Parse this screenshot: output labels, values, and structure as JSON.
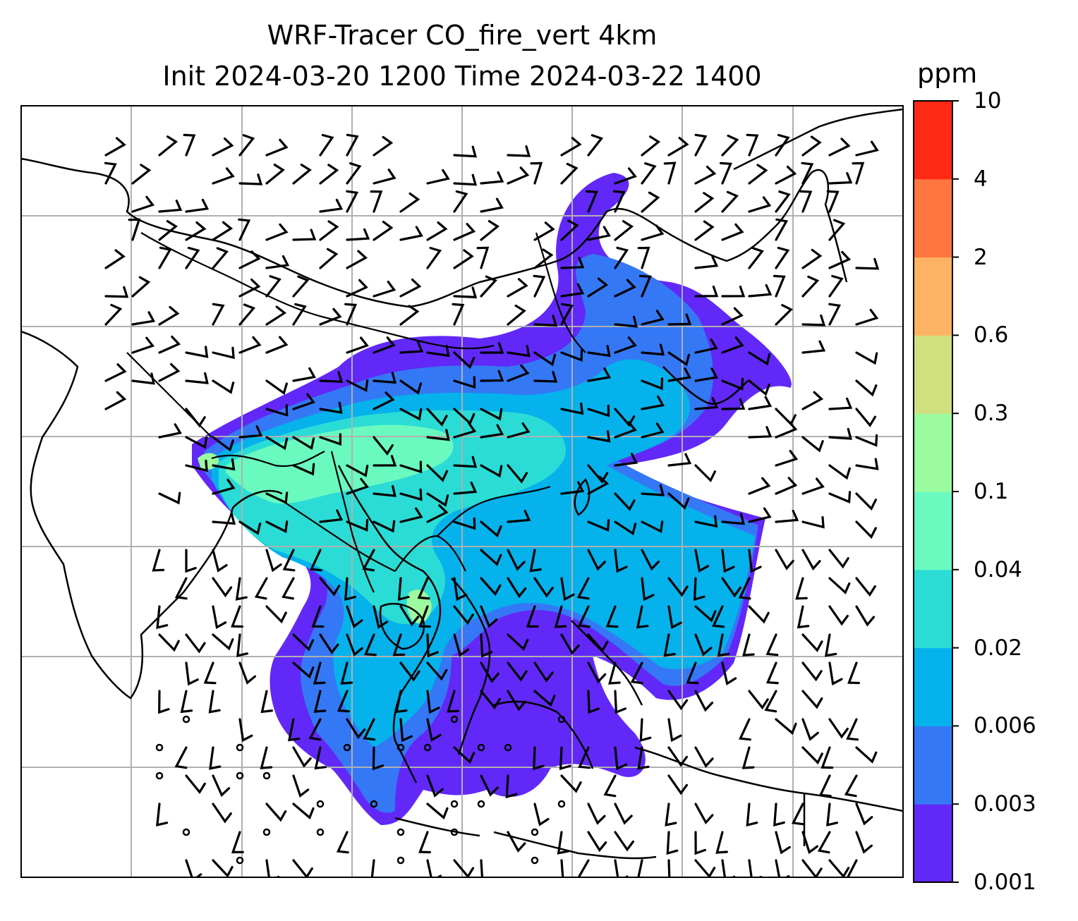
{
  "title_line1": "WRF-Tracer CO_fire_vert 4km",
  "title_line2": "Init 2024-03-20 1200 Time 2024-03-22 1400",
  "colorbar": {
    "unit": "ppm",
    "ticks": [
      "0.001",
      "0.003",
      "0.006",
      "0.02",
      "0.04",
      "0.1",
      "0.3",
      "0.6",
      "2",
      "4",
      "10"
    ],
    "colors": [
      "#6228f8",
      "#3478f5",
      "#05b2ec",
      "#2adcd5",
      "#6afac0",
      "#9cfb9e",
      "#d1e07f",
      "#fdb363",
      "#ff7640",
      "#ff2a16"
    ]
  },
  "map": {
    "gridlines": true,
    "features": [
      "coastlines",
      "country-borders",
      "wind-barbs",
      "tracer-plume"
    ]
  }
}
